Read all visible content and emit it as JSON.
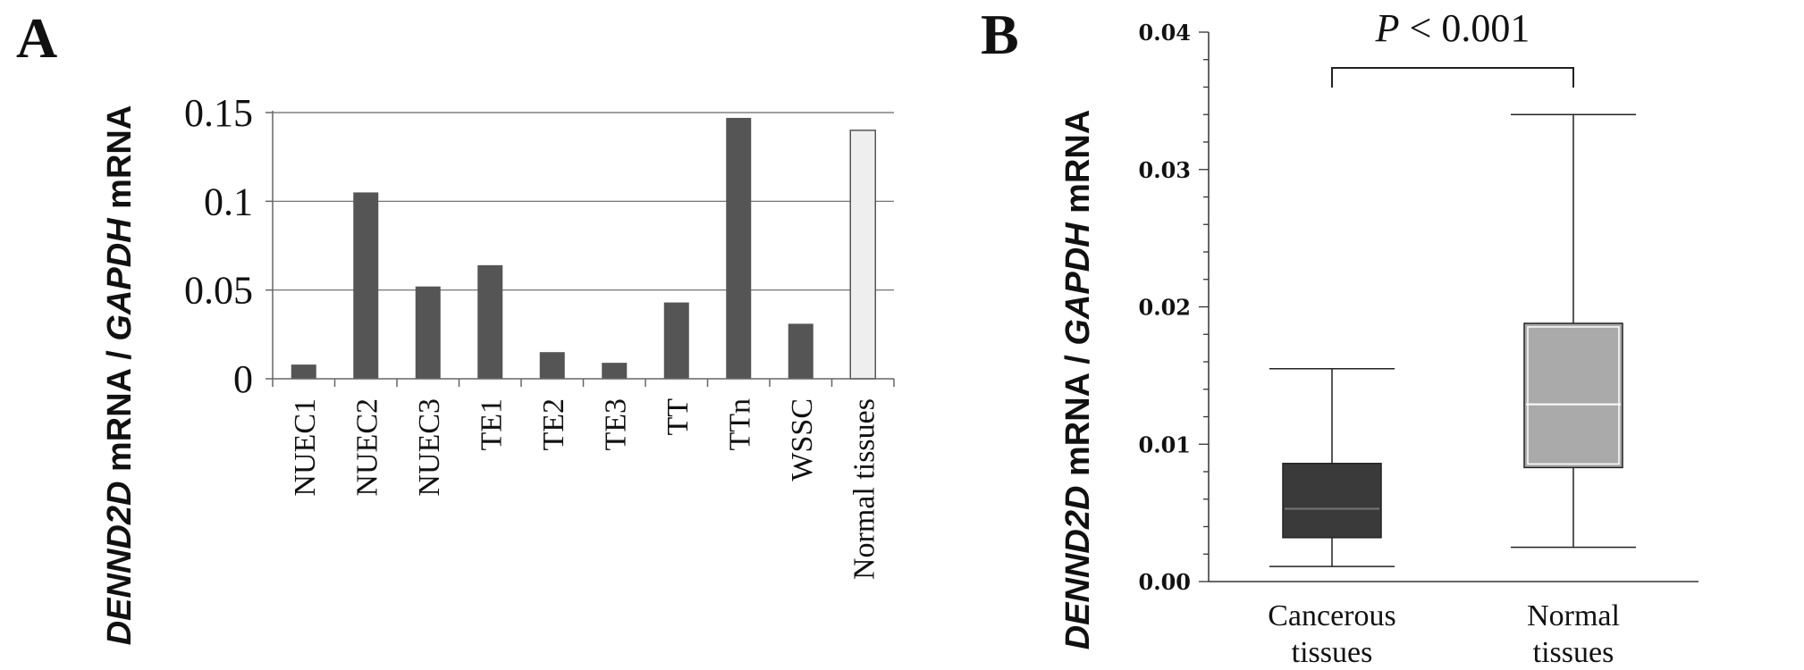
{
  "panels": {
    "a": "A",
    "b": "B"
  },
  "chart_data": [
    {
      "type": "bar",
      "panel": "A",
      "categories": [
        "NUEC1",
        "NUEC2",
        "NUEC3",
        "TE1",
        "TE2",
        "TE3",
        "TT",
        "TTn",
        "WSSC",
        "Normal tissues"
      ],
      "values": [
        0.008,
        0.105,
        0.052,
        0.064,
        0.015,
        0.009,
        0.043,
        0.147,
        0.031,
        0.14
      ],
      "colors": [
        "#555555",
        "#555555",
        "#555555",
        "#555555",
        "#555555",
        "#555555",
        "#555555",
        "#555555",
        "#555555",
        "#eeeeee"
      ],
      "ylabel_italic": "DENND2D",
      "ylabel_mid": " mRNA / ",
      "ylabel_italic2": "GAPDH",
      "ylabel_end": " mRNA",
      "xlabel": "",
      "title": "",
      "ylim": [
        0,
        0.15
      ],
      "yticks": [
        0,
        0.05,
        0.1,
        0.15
      ],
      "ytick_labels": [
        "0",
        "0.05",
        "0.1",
        "0.15"
      ],
      "grid": true
    },
    {
      "type": "boxplot",
      "panel": "B",
      "categories": [
        {
          "line1": "Cancerous",
          "line2": "tissues"
        },
        {
          "line1": "Normal",
          "line2": "tissues"
        }
      ],
      "boxes": [
        {
          "min": 0.0011,
          "q1": 0.0032,
          "median": 0.0053,
          "q3": 0.0086,
          "max": 0.0155,
          "color": "#3a3a3a",
          "median_color": "#777777"
        },
        {
          "min": 0.0025,
          "q1": 0.0083,
          "median": 0.0129,
          "q3": 0.0188,
          "max": 0.034,
          "color": "#aaaaaa",
          "median_color": "#ffffff"
        }
      ],
      "ylim": [
        0,
        0.04
      ],
      "yticks": [
        0,
        0.01,
        0.02,
        0.03,
        0.04
      ],
      "ytick_labels": [
        "0.00",
        "0.01",
        "0.02",
        "0.03",
        "0.04"
      ],
      "ylabel_italic": "DENND2D",
      "ylabel_mid": " mRNA / ",
      "ylabel_italic2": "GAPDH",
      "ylabel_end": " mRNA",
      "significance": {
        "p_italic": "P",
        "text": " < 0.001"
      },
      "grid": false
    }
  ]
}
